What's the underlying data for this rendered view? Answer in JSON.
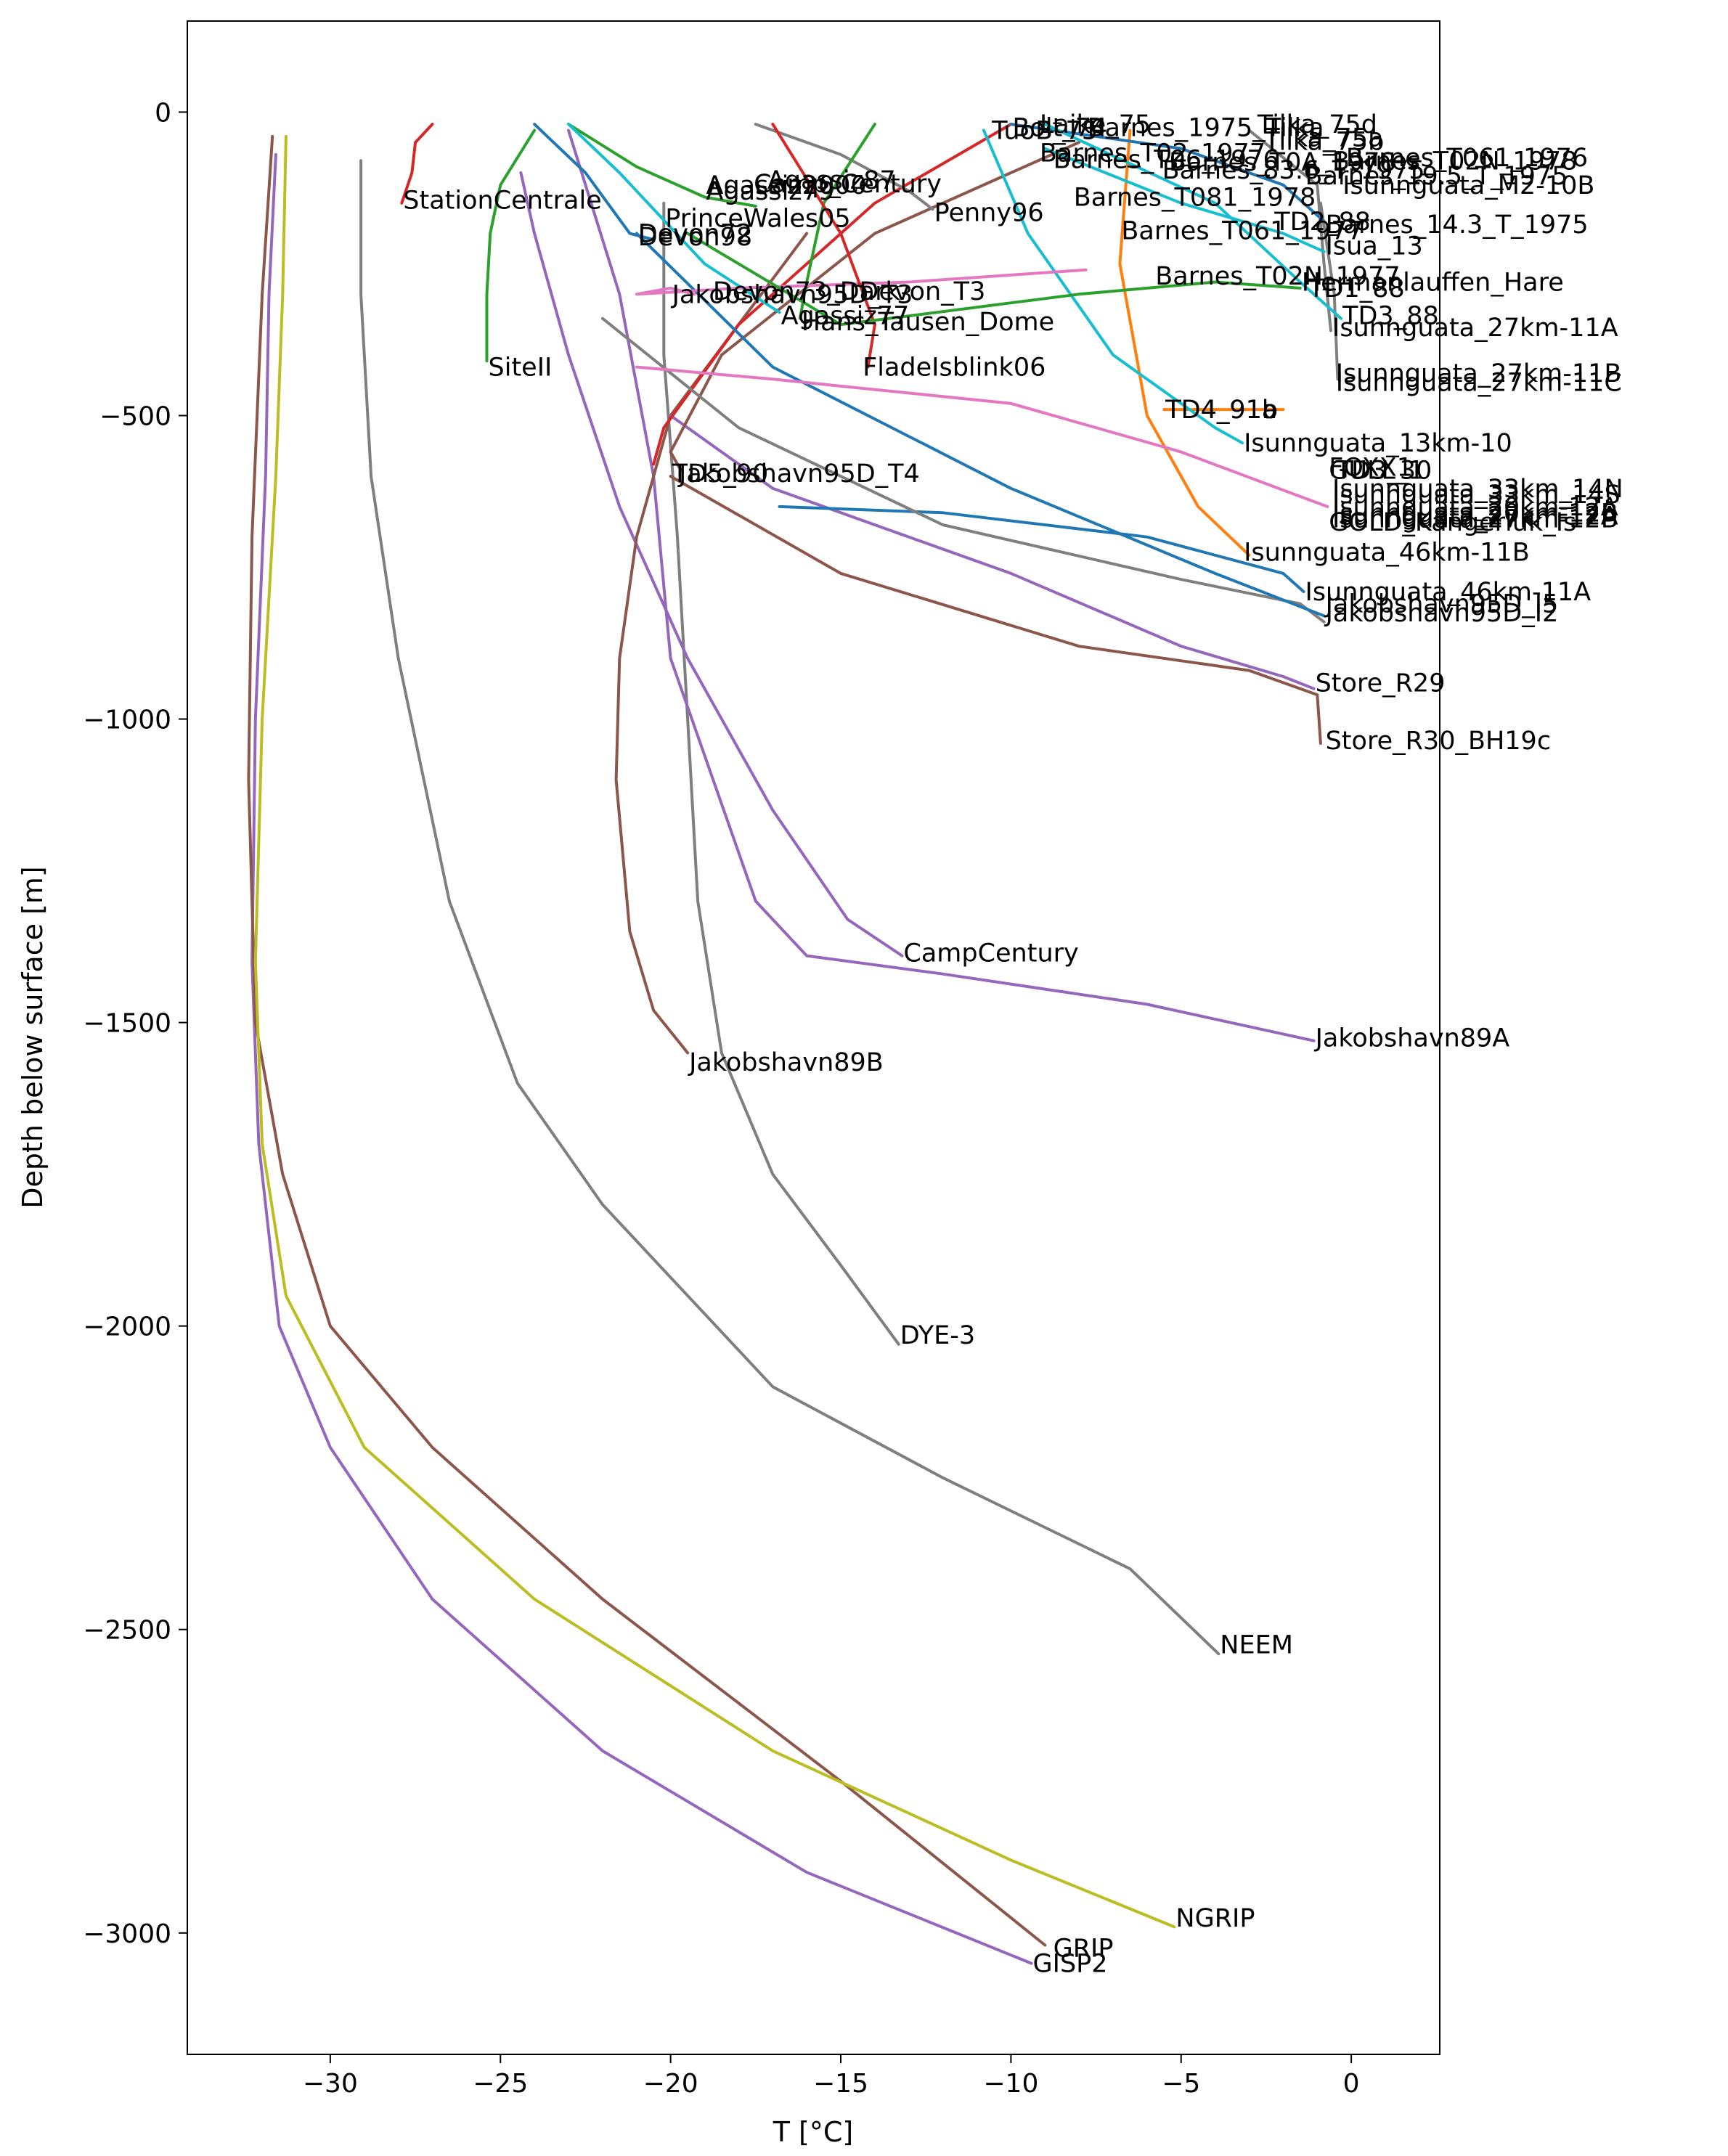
{
  "chart_data": {
    "type": "line",
    "title": "",
    "xlabel": "T [°C]",
    "ylabel": "Depth below surface [m]",
    "xlim": [
      -34.2,
      2.6
    ],
    "ylim": [
      -3200,
      150
    ],
    "xticks": [
      -30,
      -25,
      -20,
      -15,
      -10,
      -5,
      0
    ],
    "xtick_labels": [
      "−30",
      "−25",
      "−20",
      "−15",
      "−10",
      "−5",
      "0"
    ],
    "yticks": [
      0,
      -500,
      -1000,
      -1500,
      -2000,
      -2500,
      -3000
    ],
    "ytick_labels": [
      "0",
      "−500",
      "−1000",
      "−1500",
      "−2000",
      "−2500",
      "−3000"
    ],
    "grid": false,
    "legend": "none",
    "series": [
      {
        "name": "GISP2",
        "color": "#9467bd",
        "x": [
          -31.6,
          -31.8,
          -31.9,
          -32.2,
          -32.3,
          -32.1,
          -31.5,
          -30.0,
          -27.0,
          -22.0,
          -16.0,
          -9.4
        ],
        "y": [
          -70,
          -300,
          -600,
          -1000,
          -1400,
          -1700,
          -2000,
          -2200,
          -2450,
          -2700,
          -2900,
          -3050
        ]
      },
      {
        "name": "GRIP",
        "color": "#8c564b",
        "x": [
          -31.7,
          -32.0,
          -32.3,
          -32.4,
          -32.2,
          -31.4,
          -30.0,
          -27.0,
          -22.0,
          -15.0,
          -9.0
        ],
        "y": [
          -40,
          -300,
          -700,
          -1100,
          -1500,
          -1750,
          -2000,
          -2200,
          -2450,
          -2750,
          -3020
        ]
      },
      {
        "name": "NGRIP",
        "color": "#bcbd22",
        "x": [
          -31.3,
          -31.4,
          -31.6,
          -32.0,
          -32.2,
          -32.0,
          -31.3,
          -29.0,
          -24.0,
          -17.0,
          -10.0,
          -5.2
        ],
        "y": [
          -40,
          -300,
          -600,
          -1000,
          -1400,
          -1700,
          -1950,
          -2200,
          -2450,
          -2700,
          -2880,
          -2990
        ]
      },
      {
        "name": "NEEM",
        "color": "#7f7f7f",
        "x": [
          -29.1,
          -29.1,
          -28.8,
          -28.0,
          -26.5,
          -24.5,
          -22.0,
          -17.0,
          -12.0,
          -6.5,
          -3.9
        ],
        "y": [
          -80,
          -300,
          -600,
          -900,
          -1300,
          -1600,
          -1800,
          -2100,
          -2250,
          -2400,
          -2540
        ]
      },
      {
        "name": "DYE-3",
        "color": "#7f7f7f",
        "x": [
          -20.2,
          -20.2,
          -19.8,
          -19.5,
          -19.2,
          -18.5,
          -17.0,
          -15.0,
          -13.3
        ],
        "y": [
          -150,
          -400,
          -700,
          -1000,
          -1300,
          -1550,
          -1750,
          -1900,
          -2030
        ]
      },
      {
        "name": "CampCentury",
        "color": "#9467bd",
        "x": [
          -24.4,
          -24.0,
          -23.0,
          -21.5,
          -19.5,
          -17.0,
          -14.8,
          -13.2
        ],
        "y": [
          -100,
          -200,
          -400,
          -650,
          -900,
          -1150,
          -1330,
          -1390
        ]
      },
      {
        "name": "Jakobshavn89A",
        "color": "#9467bd",
        "x": [
          -23.0,
          -21.5,
          -20.5,
          -20.0,
          -17.5,
          -16.0,
          -12.0,
          -6.0,
          -1.1
        ],
        "y": [
          -30,
          -300,
          -600,
          -900,
          -1300,
          -1390,
          -1420,
          -1470,
          -1530
        ]
      },
      {
        "name": "Jakobshavn89B",
        "color": "#8c564b",
        "x": [
          -16.0,
          -20.0,
          -21.0,
          -21.5,
          -21.6,
          -21.2,
          -20.5,
          -19.5
        ],
        "y": [
          -200,
          -500,
          -700,
          -900,
          -1100,
          -1350,
          -1480,
          -1550
        ]
      },
      {
        "name": "SiteII",
        "color": "#2ca02c",
        "x": [
          -24.0,
          -25.0,
          -25.3,
          -25.4,
          -25.4
        ],
        "y": [
          -30,
          -120,
          -200,
          -300,
          -410
        ]
      },
      {
        "name": "StationCentrale",
        "color": "#d62728",
        "x": [
          -27.0,
          -27.5,
          -27.6,
          -27.9
        ],
        "y": [
          -20,
          -50,
          -100,
          -150
        ]
      },
      {
        "name": "Store_R29",
        "color": "#9467bd",
        "x": [
          -20.0,
          -17.0,
          -10.0,
          -5.0,
          -2.0,
          -1.1
        ],
        "y": [
          -500,
          -620,
          -760,
          -880,
          -930,
          -950
        ]
      },
      {
        "name": "Store_R30_BH19c",
        "color": "#8c564b",
        "x": [
          -20.0,
          -15.0,
          -8.0,
          -3.0,
          -1.0,
          -0.9
        ],
        "y": [
          -600,
          -760,
          -880,
          -920,
          -960,
          -1040
        ]
      },
      {
        "name": "Jakobshavn95D_T4",
        "color": "#8c564b",
        "x": [
          -8.0,
          -14.0,
          -18.5,
          -20.0,
          -19.7
        ],
        "y": [
          -50,
          -200,
          -400,
          -560,
          -590
        ]
      },
      {
        "name": "TD5_90",
        "color": "#d62728",
        "x": [
          -10.0,
          -14.0,
          -18.0,
          -20.2,
          -20.5
        ],
        "y": [
          -20,
          -150,
          -350,
          -520,
          -580
        ]
      },
      {
        "name": "Isunnguata_46km-11B",
        "color": "#ff7f0e",
        "x": [
          -6.5,
          -6.8,
          -6.0,
          -4.5,
          -3.0
        ],
        "y": [
          -30,
          -250,
          -500,
          -650,
          -730
        ]
      },
      {
        "name": "Isunnguata_46km-11A",
        "color": "#1f77b4",
        "x": [
          -16.8,
          -12.0,
          -6.0,
          -2.0,
          -1.4
        ],
        "y": [
          -650,
          -660,
          -700,
          -760,
          -790
        ]
      },
      {
        "name": "Jakobshavn95D_I2",
        "color": "#7f7f7f",
        "x": [
          -22.0,
          -18.0,
          -12.0,
          -5.0,
          -1.5,
          -0.8
        ],
        "y": [
          -340,
          -520,
          -680,
          -770,
          -810,
          -840
        ]
      },
      {
        "name": "Jakobshavn95D_I5",
        "color": "#1f77b4",
        "x": [
          -21.0,
          -17.0,
          -10.0,
          -4.0,
          -0.8
        ],
        "y": [
          -200,
          -420,
          -620,
          -760,
          -830
        ]
      },
      {
        "name": "TD4_91a",
        "color": "#ff7f0e",
        "x": [
          -5.5,
          -4.0,
          -2.0
        ],
        "y": [
          -490,
          -490,
          -490
        ]
      },
      {
        "name": "Isunnguata_13km-10",
        "color": "#17becf",
        "x": [
          -10.8,
          -9.5,
          -7.0,
          -4.0,
          -3.2
        ],
        "y": [
          -30,
          -200,
          -400,
          -520,
          -545
        ]
      },
      {
        "name": "Isunnguata_27km-11A",
        "color": "#7f7f7f",
        "x": [
          -3.0,
          -1.0,
          -0.8,
          -0.6
        ],
        "y": [
          -30,
          -120,
          -250,
          -360
        ]
      },
      {
        "name": "Isunnguata_27km-11B",
        "color": "#7f7f7f",
        "x": [
          -0.9,
          -0.5,
          -0.4
        ],
        "y": [
          -150,
          -300,
          -440
        ]
      },
      {
        "name": "Barnes_14.3_T_1975",
        "color": "#1f77b4",
        "x": [
          -10.0,
          -5.0,
          -2.0,
          -0.8
        ],
        "y": [
          -20,
          -60,
          -120,
          -180
        ]
      },
      {
        "name": "PrinceWales05",
        "color": "#2ca02c",
        "x": [
          -23.0,
          -21.0,
          -19.0,
          -17.5
        ],
        "y": [
          -20,
          -90,
          -140,
          -155
        ]
      },
      {
        "name": "Devon98",
        "color": "#1f77b4",
        "x": [
          -24.0,
          -22.5,
          -21.2,
          -20.5
        ],
        "y": [
          -20,
          -100,
          -200,
          -210
        ]
      },
      {
        "name": "Penny96",
        "color": "#7f7f7f",
        "x": [
          -17.5,
          -15.0,
          -13.0,
          -12.3
        ],
        "y": [
          -20,
          -70,
          -130,
          -160
        ]
      },
      {
        "name": "Agassiz77",
        "color": "#17becf",
        "x": [
          -23.0,
          -21.5,
          -19.0,
          -16.8
        ],
        "y": [
          -20,
          -100,
          -250,
          -330
        ]
      },
      {
        "name": "Hans_Tausen_Dome",
        "color": "#2ca02c",
        "x": [
          -14.0,
          -15.5,
          -16.0,
          -16.2
        ],
        "y": [
          -20,
          -150,
          -280,
          -340
        ]
      },
      {
        "name": "Devon73_Dark",
        "color": "#e377c2",
        "x": [
          -7.8,
          -13.0,
          -18.0,
          -21.0,
          -20.0,
          -19.3
        ],
        "y": [
          -260,
          -280,
          -290,
          -300,
          -290,
          -300
        ]
      },
      {
        "name": "FladeIsblink06",
        "color": "#d62728",
        "x": [
          -17.0,
          -15.0,
          -14.0,
          -14.2
        ],
        "y": [
          -20,
          -200,
          -350,
          -420
        ]
      },
      {
        "name": "Isua_13",
        "color": "#17becf",
        "x": [
          -9.0,
          -5.0,
          -2.0,
          -0.8
        ],
        "y": [
          -60,
          -150,
          -200,
          -230
        ]
      },
      {
        "name": "Hermanlauffen_Hare",
        "color": "#2ca02c",
        "x": [
          -19.5,
          -15.0,
          -8.0,
          -4.0,
          -1.5
        ],
        "y": [
          -200,
          -350,
          -300,
          -280,
          -290
        ]
      },
      {
        "name": "TD3_88",
        "color": "#17becf",
        "x": [
          -9.0,
          -4.0,
          -1.5,
          -0.3
        ],
        "y": [
          -20,
          -150,
          -280,
          -340
        ]
      },
      {
        "name": "GOLD_Kangerluk_Is",
        "color": "#e377c2",
        "x": [
          -21.0,
          -17.0,
          -10.0,
          -5.0,
          -0.7
        ],
        "y": [
          -420,
          -440,
          -480,
          -560,
          -650
        ]
      }
    ],
    "annotations": [
      {
        "text": "StationCentrale",
        "x": -27.9,
        "y": -145
      },
      {
        "text": "SiteII",
        "x": -25.4,
        "y": -420
      },
      {
        "text": "PrinceWales05",
        "x": -20.2,
        "y": -175
      },
      {
        "text": "Agassiz79",
        "x": -19.0,
        "y": -130
      },
      {
        "text": "Agassiz2000",
        "x": -19.0,
        "y": -120
      },
      {
        "text": "Camp_Century",
        "x": -17.6,
        "y": -118
      },
      {
        "text": "Agassiz87",
        "x": -17.2,
        "y": -112
      },
      {
        "text": "Devon98",
        "x": -21.0,
        "y": -205
      },
      {
        "text": "Devon72",
        "x": -21.0,
        "y": -200
      },
      {
        "text": "Penny96",
        "x": -12.3,
        "y": -165
      },
      {
        "text": "Jakobshavn95D_T3",
        "x": -20.0,
        "y": -300
      },
      {
        "text": "Devon73_Dark",
        "x": -18.8,
        "y": -295
      },
      {
        "text": "Devon_T3",
        "x": -14.5,
        "y": -295
      },
      {
        "text": "Agassiz77",
        "x": -16.8,
        "y": -335
      },
      {
        "text": "Hans_Tausen_Dome",
        "x": -16.2,
        "y": -345
      },
      {
        "text": "FladeIsblink06",
        "x": -14.4,
        "y": -420
      },
      {
        "text": "TD5_90",
        "x": -20.0,
        "y": -595
      },
      {
        "text": "Jakobshavn95D_T4",
        "x": -19.8,
        "y": -595
      },
      {
        "text": "Jakobshavn89B",
        "x": -19.5,
        "y": -1565
      },
      {
        "text": "CampCentury",
        "x": -13.2,
        "y": -1385
      },
      {
        "text": "DYE-3",
        "x": -13.3,
        "y": -2015
      },
      {
        "text": "NEEM",
        "x": -3.9,
        "y": -2525
      },
      {
        "text": "NGRIP",
        "x": -5.2,
        "y": -2975
      },
      {
        "text": "GRIP",
        "x": -8.8,
        "y": -3025
      },
      {
        "text": "GISP2",
        "x": -9.4,
        "y": -3050
      },
      {
        "text": "Jakobshavn89A",
        "x": -1.1,
        "y": -1525
      },
      {
        "text": "Store_R29",
        "x": -1.1,
        "y": -940
      },
      {
        "text": "Store_R30_BH19c",
        "x": -0.8,
        "y": -1035
      },
      {
        "text": "Isunnguata_46km-11A",
        "x": -1.4,
        "y": -790
      },
      {
        "text": "Jakobshavn95D_I5",
        "x": -0.8,
        "y": -810
      },
      {
        "text": "Jakobshavn95D_I2",
        "x": -0.8,
        "y": -825
      },
      {
        "text": "Isunnguata_46km-11B",
        "x": -3.2,
        "y": -725
      },
      {
        "text": "Isunnguata_13km-10",
        "x": -3.2,
        "y": -545
      },
      {
        "text": "FOXX1",
        "x": -0.7,
        "y": -585
      },
      {
        "text": "GULL_1",
        "x": -0.7,
        "y": -590
      },
      {
        "text": "TD3_30",
        "x": -0.5,
        "y": -590
      },
      {
        "text": "Isunnguata_33km_14N",
        "x": -0.6,
        "y": -620
      },
      {
        "text": "Isunnguata_33km_14S",
        "x": -0.6,
        "y": -630
      },
      {
        "text": "Isunnguata_20km-12A",
        "x": -0.6,
        "y": -650
      },
      {
        "text": "Isunnguata_20km-12B",
        "x": -0.6,
        "y": -660
      },
      {
        "text": "Isunnguata_27km-12A",
        "x": -0.6,
        "y": -665
      },
      {
        "text": "Isunnguata_27km-12B",
        "x": -0.6,
        "y": -670
      },
      {
        "text": "GOLD_Kangerluk_Is",
        "x": -0.7,
        "y": -675
      },
      {
        "text": "TD4_91a",
        "x": -5.5,
        "y": -490
      },
      {
        "text": "TD4_91b",
        "x": -5.5,
        "y": -490
      },
      {
        "text": "Isunnguata_27km-11A",
        "x": -0.6,
        "y": -355
      },
      {
        "text": "Isunnguata_27km-11B",
        "x": -0.5,
        "y": -430
      },
      {
        "text": "Isunnguata_27km-11C",
        "x": -0.5,
        "y": -445
      },
      {
        "text": "TD3_88",
        "x": -0.3,
        "y": -335
      },
      {
        "text": "TD1_88",
        "x": -1.3,
        "y": -290
      },
      {
        "text": "Hermanlauffen_Hare",
        "x": -1.5,
        "y": -280
      },
      {
        "text": "Barnes_T02N_1977",
        "x": -5.8,
        "y": -270
      },
      {
        "text": "Isua_13",
        "x": -0.8,
        "y": -220
      },
      {
        "text": "TD2_88",
        "x": -2.3,
        "y": -180
      },
      {
        "text": "Barnes_T061_1977",
        "x": -6.8,
        "y": -195
      },
      {
        "text": "Barnes_14.3_T_1975",
        "x": -0.8,
        "y": -185
      },
      {
        "text": "Barnes_T081_1978",
        "x": -8.2,
        "y": -140
      },
      {
        "text": "Isunnguata_M2-10B",
        "x": -0.3,
        "y": -120
      },
      {
        "text": "Barnes_19.5_T_1975",
        "x": -1.4,
        "y": -105
      },
      {
        "text": "Barnes_83.6_T_1975",
        "x": -5.6,
        "y": -95
      },
      {
        "text": "Barnes_T02N_1978",
        "x": -0.6,
        "y": -80
      },
      {
        "text": "Barnes_T0A_1978",
        "x": -5.4,
        "y": -82
      },
      {
        "text": "Barnes_T06_1976",
        "x": -8.8,
        "y": -78
      },
      {
        "text": "Barnes_T061_1976",
        "x": -0.2,
        "y": -75
      },
      {
        "text": "Barnes_T02_1977",
        "x": -9.2,
        "y": -67
      },
      {
        "text": "TuoB_75",
        "x": -10.6,
        "y": -30
      },
      {
        "text": "Bolt_74",
        "x": -10.0,
        "y": -25
      },
      {
        "text": "Laike_75",
        "x": -9.2,
        "y": -20
      },
      {
        "text": "Barnes_1975_Tilka",
        "x": -7.8,
        "y": -25
      },
      {
        "text": "Tilka_75d",
        "x": -2.8,
        "y": -20
      },
      {
        "text": "Tilka_75a",
        "x": -2.6,
        "y": -42
      },
      {
        "text": "Tilka_75b",
        "x": -2.6,
        "y": -48
      }
    ]
  }
}
